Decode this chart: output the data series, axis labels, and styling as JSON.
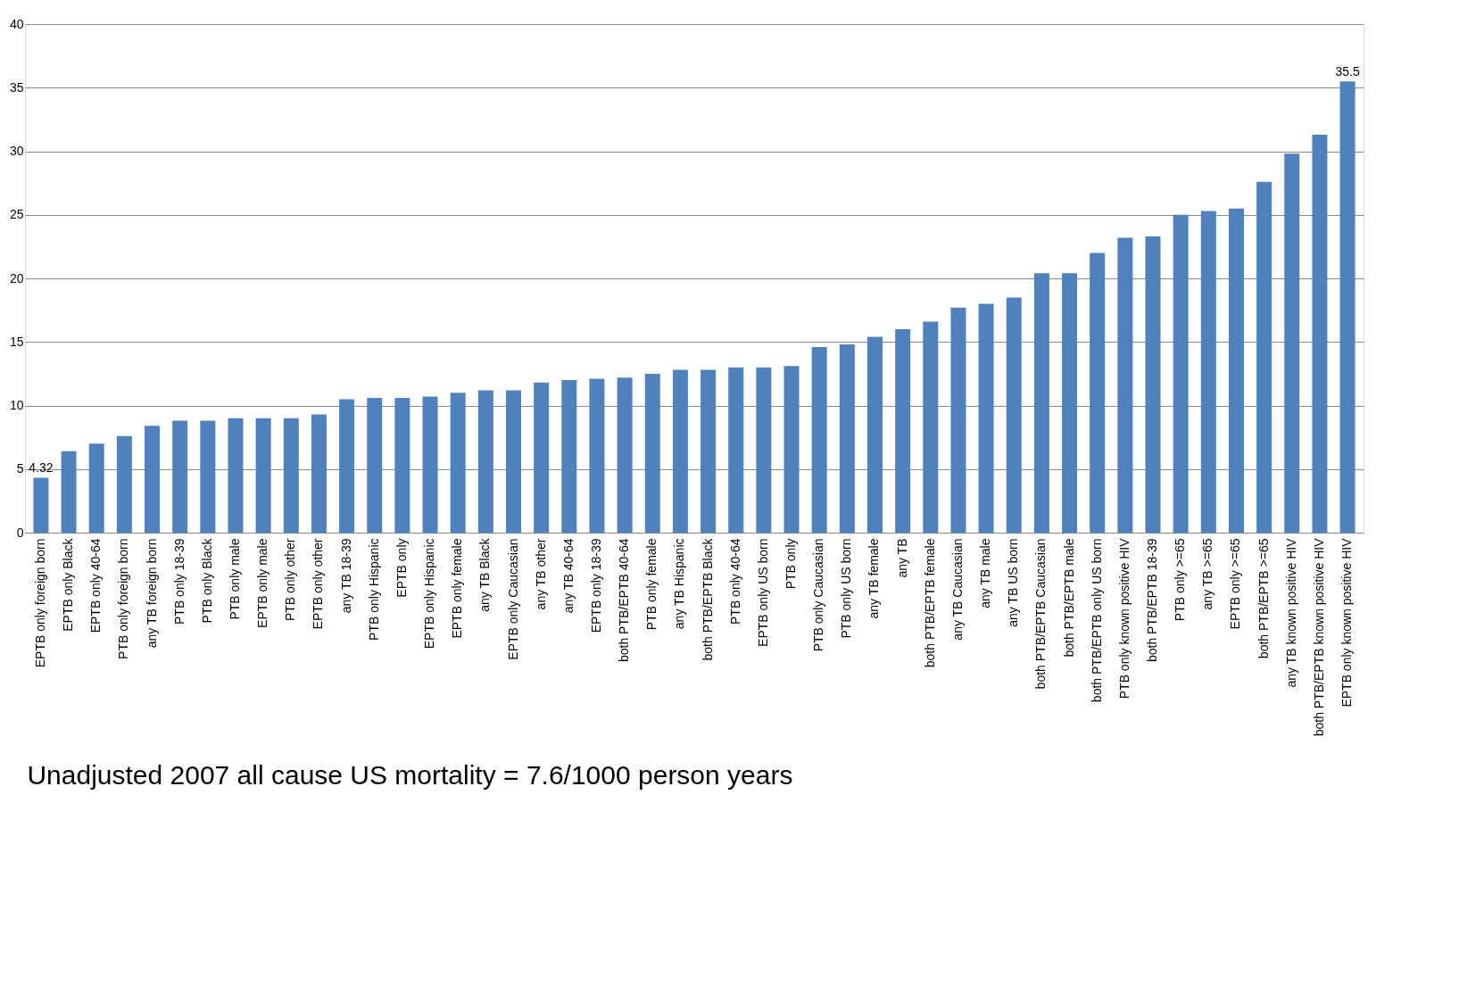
{
  "chart_data": {
    "type": "bar",
    "categories": [
      "EPTB only foreign born",
      "EPTB only Black",
      "EPTB only 40-64",
      "PTB only foreign born",
      "any TB foreign born",
      "PTB only 18-39",
      "PTB only Black",
      "PTB only male",
      "EPTB only male",
      "PTB only other",
      "EPTB only other",
      "any TB 18-39",
      "PTB only Hispanic",
      "EPTB only",
      "EPTB only Hispanic",
      "EPTB only female",
      "any TB Black",
      "EPTB only Caucasian",
      "any TB other",
      "any TB 40-64",
      "EPTB only 18-39",
      "both PTB/EPTB 40-64",
      "PTB only female",
      "any TB Hispanic",
      "both PTB/EPTB Black",
      "PTB only 40-64",
      "EPTB only US born",
      "PTB only",
      "PTB only Caucasian",
      "PTB only US born",
      "any TB female",
      "any TB",
      "both PTB/EPTB female",
      "any TB Caucasian",
      "any TB male",
      "any TB US born",
      "both PTB/EPTB Caucasian",
      "both PTB/EPTB male",
      "both PTB/EPTB only US born",
      "PTB only known positive HIV",
      "both PTB/EPTB 18-39",
      "PTB only >=65",
      "any TB >=65",
      "EPTB only >=65",
      "both PTB/EPTB >=65",
      "any TB known positive HIV",
      "both PTB/EPTB known positive HIV",
      "EPTB only known positive HIV"
    ],
    "values": [
      4.32,
      6.4,
      7.0,
      7.6,
      8.4,
      8.8,
      8.8,
      9.0,
      9.0,
      9.0,
      9.3,
      10.5,
      10.6,
      10.6,
      10.7,
      11.0,
      11.2,
      11.2,
      11.8,
      12.0,
      12.1,
      12.2,
      12.5,
      12.8,
      12.8,
      13.0,
      13.0,
      13.1,
      14.6,
      14.8,
      15.4,
      16.0,
      16.6,
      17.7,
      18.0,
      18.5,
      20.4,
      20.4,
      22.0,
      23.2,
      23.3,
      25.0,
      25.3,
      25.5,
      27.6,
      29.8,
      31.3,
      35.5
    ],
    "value_labels": [
      "4.32",
      null,
      null,
      null,
      null,
      null,
      null,
      null,
      null,
      null,
      null,
      null,
      null,
      null,
      null,
      null,
      null,
      null,
      null,
      null,
      null,
      null,
      null,
      null,
      null,
      null,
      null,
      null,
      null,
      null,
      null,
      null,
      null,
      null,
      null,
      null,
      null,
      null,
      null,
      null,
      null,
      null,
      null,
      null,
      null,
      null,
      null,
      "35.5"
    ],
    "color": "#4f81bd",
    "ylim": [
      0,
      40
    ],
    "yticks": [
      0,
      5,
      10,
      15,
      20,
      25,
      30,
      35,
      40
    ],
    "grid": "y",
    "annotations": [
      "Unadjusted 2007 all cause US mortality = 7.6/1000 person years"
    ]
  }
}
